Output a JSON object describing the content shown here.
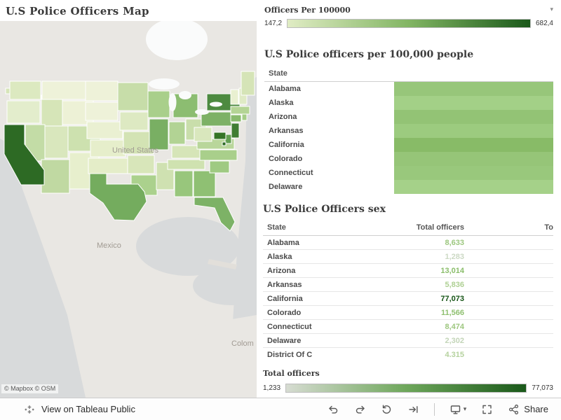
{
  "map": {
    "title": "U.S Police Officers Map",
    "attribution": "© Mapbox  © OSM",
    "labels": {
      "united_states": "United States",
      "mexico": "Mexico",
      "colombia_partial": "Colom"
    },
    "states": [
      {
        "id": "AK",
        "color": "#d6e5b8"
      },
      {
        "id": "WA",
        "color": "#dce9c0"
      },
      {
        "id": "OR",
        "color": "#e3edcc"
      },
      {
        "id": "ID",
        "color": "#d6e5b8"
      },
      {
        "id": "MT",
        "color": "#eef2d9"
      },
      {
        "id": "WY",
        "color": "#edf1d6"
      },
      {
        "id": "NV",
        "color": "#c3dca6"
      },
      {
        "id": "UT",
        "color": "#d9e7bd"
      },
      {
        "id": "CO",
        "color": "#cde1af"
      },
      {
        "id": "AZ",
        "color": "#c0d9a2"
      },
      {
        "id": "NM",
        "color": "#e7efcd"
      },
      {
        "id": "ND",
        "color": "#eef2d9"
      },
      {
        "id": "SD",
        "color": "#eef2d9"
      },
      {
        "id": "NE",
        "color": "#eaf0d2"
      },
      {
        "id": "KS",
        "color": "#e6eecb"
      },
      {
        "id": "OK",
        "color": "#e4edc8"
      },
      {
        "id": "MN",
        "color": "#c7dda9"
      },
      {
        "id": "IA",
        "color": "#dde9c2"
      },
      {
        "id": "MO",
        "color": "#d3e3b4"
      },
      {
        "id": "AR",
        "color": "#d8e6ba"
      },
      {
        "id": "LA",
        "color": "#abd18d"
      },
      {
        "id": "WI",
        "color": "#a9cf8b"
      },
      {
        "id": "IL",
        "color": "#79af63"
      },
      {
        "id": "MS",
        "color": "#cfe1b1"
      },
      {
        "id": "MI",
        "color": "#8cbd71"
      },
      {
        "id": "IN",
        "color": "#b2d394"
      },
      {
        "id": "OH",
        "color": "#c9deab"
      },
      {
        "id": "KY",
        "color": "#d6e5b8"
      },
      {
        "id": "TN",
        "color": "#cfe2b0"
      },
      {
        "id": "AL",
        "color": "#98c67c"
      },
      {
        "id": "GA",
        "color": "#8fc073"
      },
      {
        "id": "SC",
        "color": "#9fca82"
      },
      {
        "id": "NC",
        "color": "#a9cf8b"
      },
      {
        "id": "VA",
        "color": "#b9d69b"
      },
      {
        "id": "WV",
        "color": "#d9e7bd"
      },
      {
        "id": "PA",
        "color": "#7db166"
      },
      {
        "id": "NY",
        "color": "#4d8a40"
      },
      {
        "id": "NJ",
        "color": "#3f7d33"
      },
      {
        "id": "DE",
        "color": "#63a052"
      },
      {
        "id": "MD",
        "color": "#357427"
      },
      {
        "id": "CT",
        "color": "#89bb6e"
      },
      {
        "id": "RI",
        "color": "#a5cd87"
      },
      {
        "id": "MA",
        "color": "#b4d495"
      },
      {
        "id": "VT",
        "color": "#e9f0d1"
      },
      {
        "id": "NH",
        "color": "#dfeac5"
      },
      {
        "id": "ME",
        "color": "#d5e4b7"
      },
      {
        "id": "DC",
        "color": "#2d6a24"
      },
      {
        "id": "CA",
        "color": "#2d6a24"
      },
      {
        "id": "TX",
        "color": "#74ac5e"
      },
      {
        "id": "FL",
        "color": "#7db266"
      }
    ]
  },
  "legend_per_100k": {
    "title": "Officers Per 100000",
    "min_label": "147,2",
    "max_label": "682,4",
    "caret": "▾",
    "gradient": [
      "#e0ecc4",
      "#82b563",
      "#1a591a"
    ]
  },
  "per_100k_chart": {
    "title": "U.S Police officers per 100,000 people",
    "state_column": "State",
    "rows": [
      {
        "state": "Alabama",
        "bar_color": "#97c67a"
      },
      {
        "state": "Alaska",
        "bar_color": "#a3d087"
      },
      {
        "state": "Arizona",
        "bar_color": "#93c375"
      },
      {
        "state": "Arkansas",
        "bar_color": "#9ccb7f"
      },
      {
        "state": "California",
        "bar_color": "#88bb67"
      },
      {
        "state": "Colorado",
        "bar_color": "#96c578"
      },
      {
        "state": "Connecticut",
        "bar_color": "#99c87c"
      },
      {
        "state": "Delaware",
        "bar_color": "#a5d189"
      }
    ]
  },
  "sex_table": {
    "title": "U.S Police Officers sex",
    "columns": {
      "state": "State",
      "total": "Total officers",
      "third": "To"
    },
    "rows": [
      {
        "state": "Alabama",
        "total": "8,633",
        "value_color": "#9cc77e"
      },
      {
        "state": "Alaska",
        "total": "1,283",
        "value_color": "#ccd9c4"
      },
      {
        "state": "Arizona",
        "total": "13,014",
        "value_color": "#8abd6a"
      },
      {
        "state": "Arkansas",
        "total": "5,836",
        "value_color": "#aed093"
      },
      {
        "state": "California",
        "total": "77,073",
        "value_color": "#155415"
      },
      {
        "state": "Colorado",
        "total": "11,566",
        "value_color": "#8fc070"
      },
      {
        "state": "Connecticut",
        "total": "8,474",
        "value_color": "#9dc77f"
      },
      {
        "state": "Delaware",
        "total": "2,302",
        "value_color": "#c3d5b8"
      },
      {
        "state": "District Of C",
        "total": "4,315",
        "value_color": "#b5d29e"
      }
    ]
  },
  "legend_total": {
    "title": "Total officers",
    "min_label": "1,233",
    "max_label": "77,073",
    "gradient": [
      "#d7dcd2",
      "#6ea75b",
      "#1a591a"
    ]
  },
  "toolbar": {
    "view_on": "View on Tableau Public",
    "share": "Share",
    "download_caret": "▾"
  },
  "chart_data": [
    {
      "type": "heatmap",
      "title": "U.S Police officers per 100,000 people",
      "categories": [
        "Alabama",
        "Alaska",
        "Arizona",
        "Arkansas",
        "California",
        "Colorado",
        "Connecticut",
        "Delaware"
      ],
      "legend_range": [
        147.2,
        682.4
      ],
      "note": "color-encoded full-width row bars; values not labeled"
    },
    {
      "type": "table",
      "title": "U.S Police Officers sex",
      "columns": [
        "State",
        "Total officers"
      ],
      "rows": [
        [
          "Alabama",
          8633
        ],
        [
          "Alaska",
          1283
        ],
        [
          "Arizona",
          13014
        ],
        [
          "Arkansas",
          5836
        ],
        [
          "California",
          77073
        ],
        [
          "Colorado",
          11566
        ],
        [
          "Connecticut",
          8474
        ],
        [
          "Delaware",
          2302
        ],
        [
          "District Of C",
          4315
        ]
      ],
      "color_scale_range": [
        1233,
        77073
      ]
    }
  ]
}
